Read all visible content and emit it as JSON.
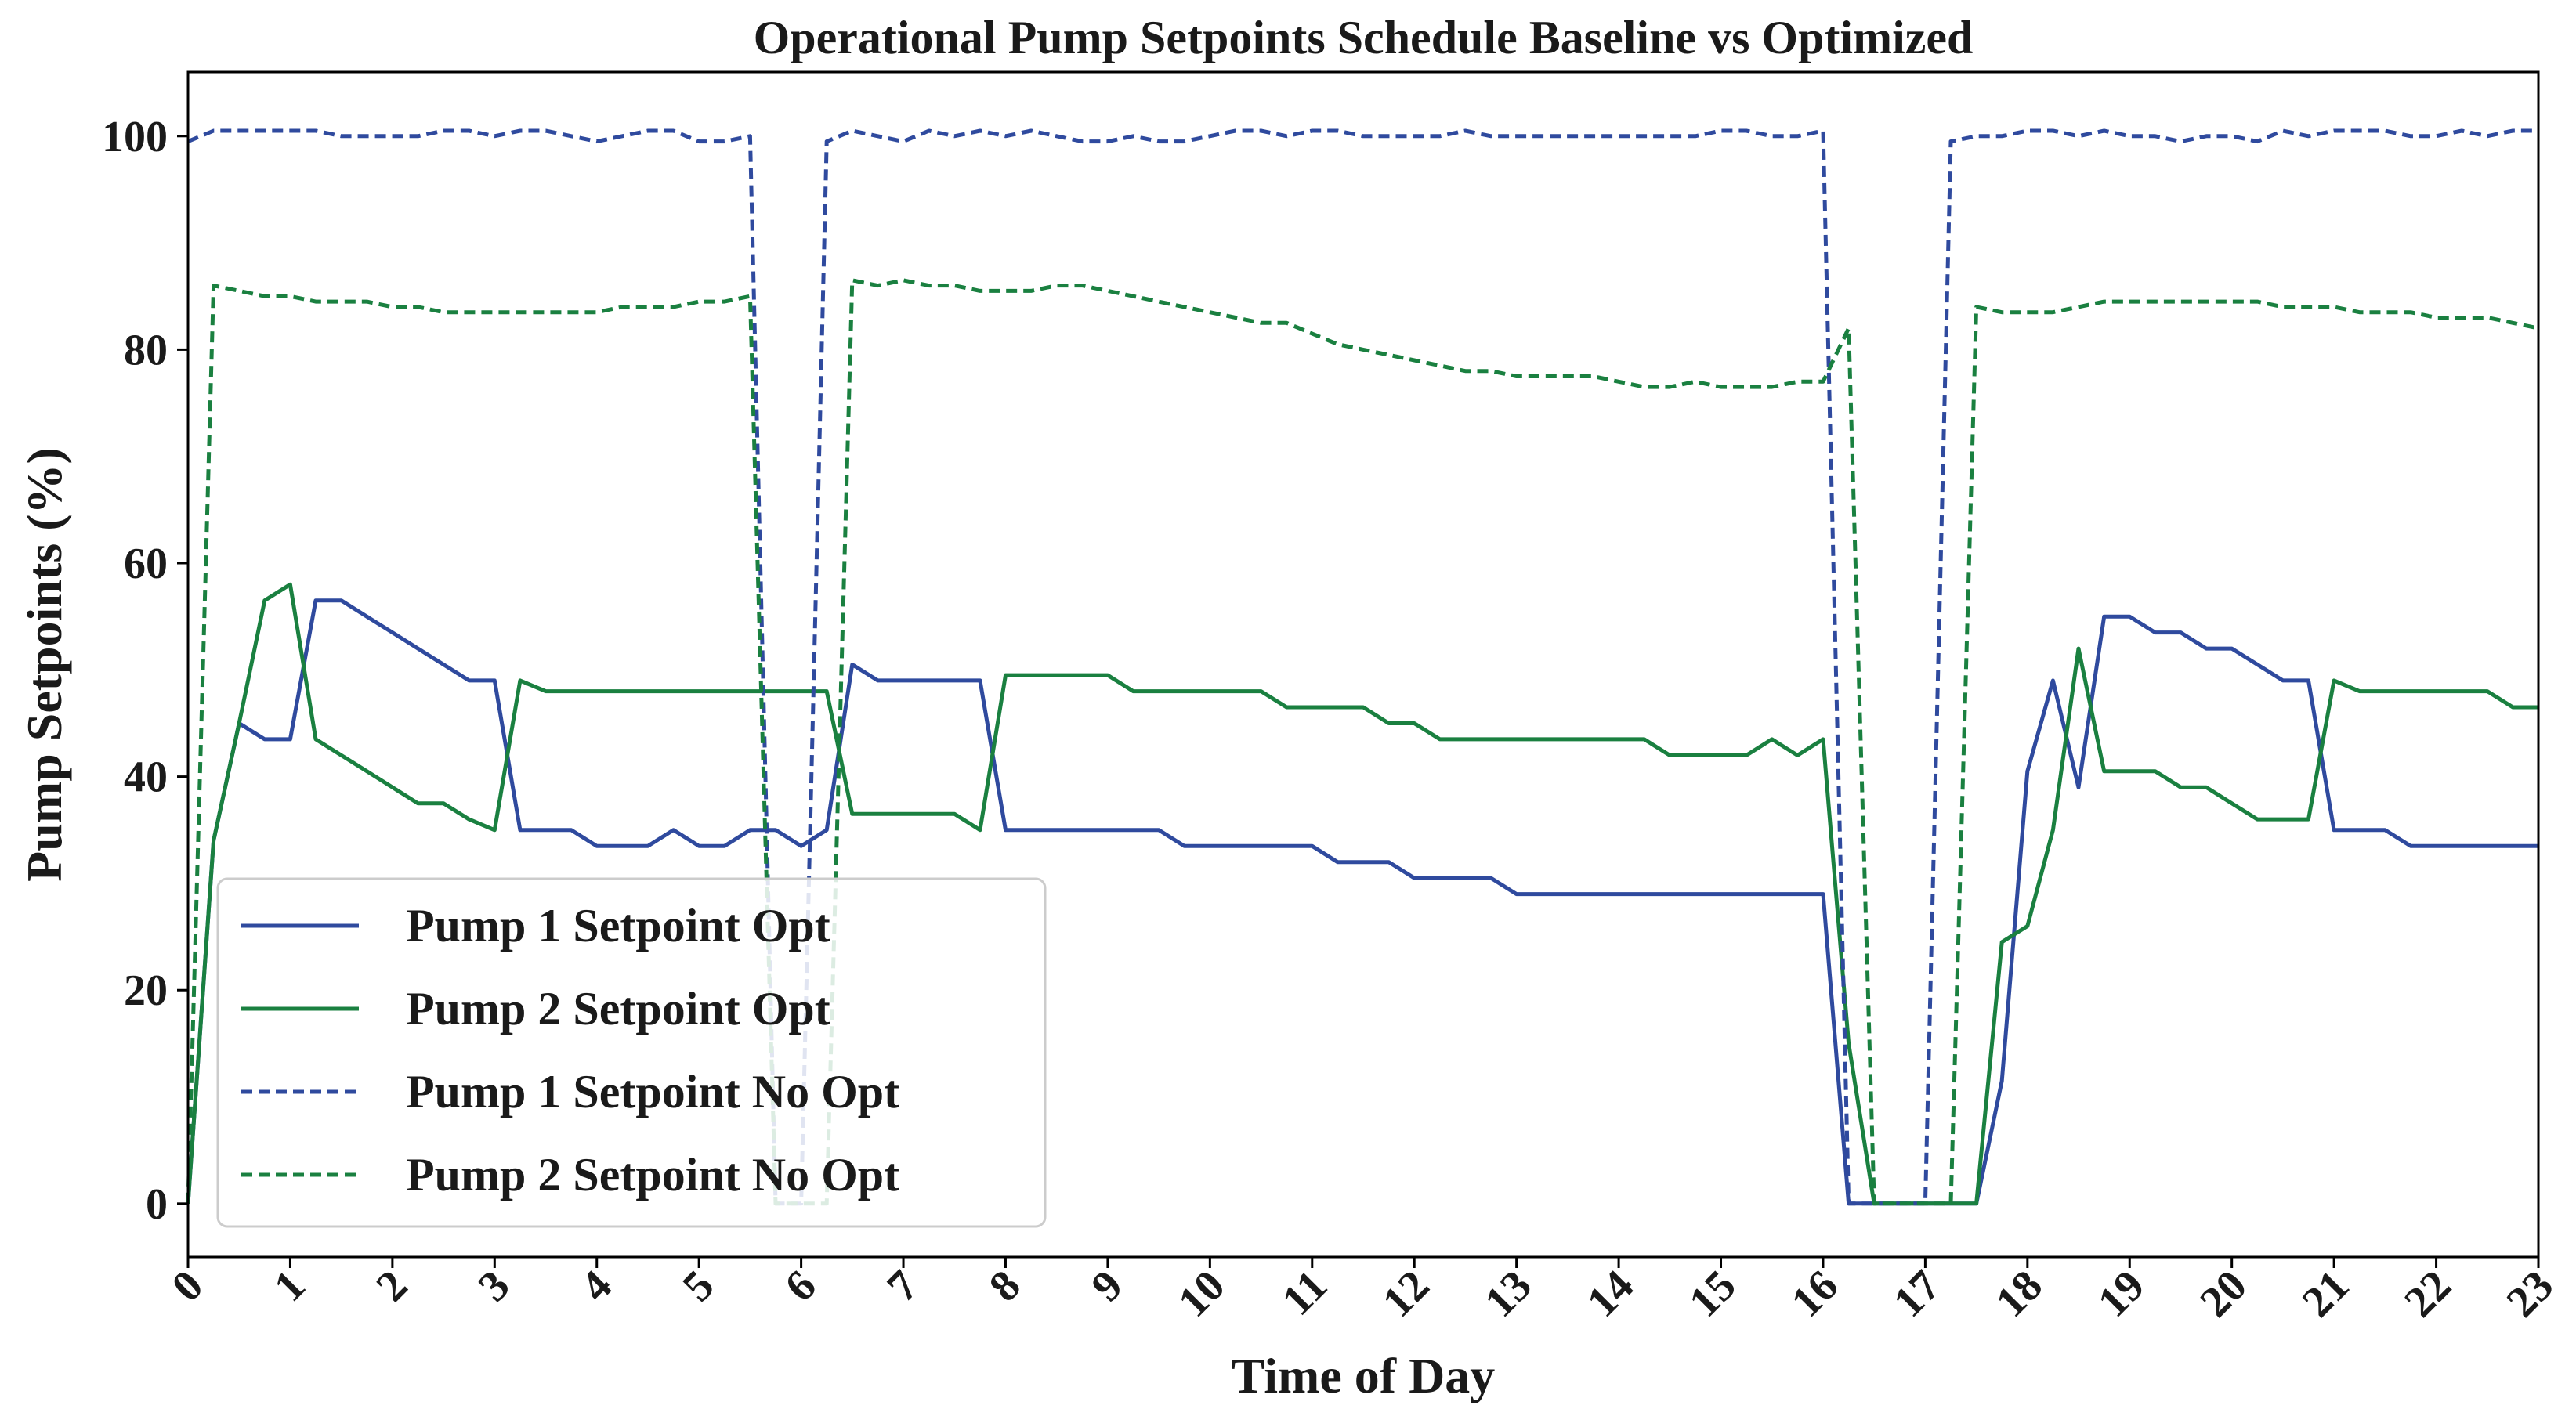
{
  "chart_data": {
    "type": "line",
    "title": "Operational Pump Setpoints Schedule Baseline vs Optimized",
    "xlabel": "Time of Day",
    "ylabel": "Pump Setpoints (%)",
    "xlim": [
      0,
      23
    ],
    "ylim": [
      -5,
      106
    ],
    "xticks": [
      0,
      1,
      2,
      3,
      4,
      5,
      6,
      7,
      8,
      9,
      10,
      11,
      12,
      13,
      14,
      15,
      16,
      17,
      18,
      19,
      20,
      21,
      22,
      23
    ],
    "yticks": [
      0,
      20,
      40,
      60,
      80,
      100
    ],
    "grid": false,
    "legend_position": "lower-left",
    "series": [
      {
        "name": "Pump 1 Setpoint Opt",
        "color": "#2f4a9e",
        "style": "solid",
        "x": [
          0,
          0.25,
          0.5,
          0.75,
          1,
          1.25,
          1.5,
          1.75,
          2,
          2.25,
          2.5,
          2.75,
          3,
          3.25,
          3.5,
          3.75,
          4,
          4.25,
          4.5,
          4.75,
          5,
          5.25,
          5.5,
          5.75,
          6,
          6.25,
          6.5,
          6.75,
          7,
          7.25,
          7.5,
          7.75,
          8,
          8.25,
          8.5,
          8.75,
          9,
          9.25,
          9.5,
          9.75,
          10,
          10.25,
          10.5,
          10.75,
          11,
          11.25,
          11.5,
          11.75,
          12,
          12.25,
          12.5,
          12.75,
          13,
          13.25,
          13.5,
          13.75,
          14,
          14.25,
          14.5,
          14.75,
          15,
          15.25,
          15.5,
          15.75,
          16,
          16.25,
          16.5,
          16.75,
          17,
          17.25,
          17.5,
          17.75,
          18,
          18.25,
          18.5,
          18.75,
          19,
          19.25,
          19.5,
          19.75,
          20,
          20.25,
          20.5,
          20.75,
          21,
          21.25,
          21.5,
          21.75,
          22,
          22.25,
          22.5,
          22.75,
          23
        ],
        "y": [
          0,
          34,
          45,
          43.5,
          43.5,
          56.5,
          56.5,
          55,
          53.5,
          52,
          50.5,
          49,
          49,
          35,
          35,
          35,
          33.5,
          33.5,
          33.5,
          35,
          33.5,
          33.5,
          35,
          35,
          33.5,
          35,
          50.5,
          49,
          49,
          49,
          49,
          49,
          35,
          35,
          35,
          35,
          35,
          35,
          35,
          33.5,
          33.5,
          33.5,
          33.5,
          33.5,
          33.5,
          32,
          32,
          32,
          30.5,
          30.5,
          30.5,
          30.5,
          29,
          29,
          29,
          29,
          29,
          29,
          29,
          29,
          29,
          29,
          29,
          29,
          29,
          0,
          0,
          0,
          0,
          0,
          0,
          11.5,
          40.5,
          49,
          39,
          55,
          55,
          53.5,
          53.5,
          52,
          52,
          50.5,
          49,
          49,
          35,
          35,
          35,
          33.5,
          33.5,
          33.5,
          33.5,
          33.5,
          33.5
        ]
      },
      {
        "name": "Pump 2 Setpoint Opt",
        "color": "#1a8040",
        "style": "solid",
        "x": [
          0,
          0.25,
          0.5,
          0.75,
          1,
          1.25,
          1.5,
          1.75,
          2,
          2.25,
          2.5,
          2.75,
          3,
          3.25,
          3.5,
          3.75,
          4,
          4.25,
          4.5,
          4.75,
          5,
          5.25,
          5.5,
          5.75,
          6,
          6.25,
          6.5,
          6.75,
          7,
          7.25,
          7.5,
          7.75,
          8,
          8.25,
          8.5,
          8.75,
          9,
          9.25,
          9.5,
          9.75,
          10,
          10.25,
          10.5,
          10.75,
          11,
          11.25,
          11.5,
          11.75,
          12,
          12.25,
          12.5,
          12.75,
          13,
          13.25,
          13.5,
          13.75,
          14,
          14.25,
          14.5,
          14.75,
          15,
          15.25,
          15.5,
          15.75,
          16,
          16.25,
          16.5,
          16.75,
          17,
          17.25,
          17.5,
          17.75,
          18,
          18.25,
          18.5,
          18.75,
          19,
          19.25,
          19.5,
          19.75,
          20,
          20.25,
          20.5,
          20.75,
          21,
          21.25,
          21.5,
          21.75,
          22,
          22.25,
          22.5,
          22.75,
          23
        ],
        "y": [
          0,
          34,
          45,
          56.5,
          58,
          43.5,
          42,
          40.5,
          39,
          37.5,
          37.5,
          36,
          35,
          49,
          48,
          48,
          48,
          48,
          48,
          48,
          48,
          48,
          48,
          48,
          48,
          48,
          36.5,
          36.5,
          36.5,
          36.5,
          36.5,
          35,
          49.5,
          49.5,
          49.5,
          49.5,
          49.5,
          48,
          48,
          48,
          48,
          48,
          48,
          46.5,
          46.5,
          46.5,
          46.5,
          45,
          45,
          43.5,
          43.5,
          43.5,
          43.5,
          43.5,
          43.5,
          43.5,
          43.5,
          43.5,
          42,
          42,
          42,
          42,
          43.5,
          42,
          43.5,
          15,
          0,
          0,
          0,
          0,
          0,
          24.5,
          26,
          35,
          52,
          40.5,
          40.5,
          40.5,
          39,
          39,
          37.5,
          36,
          36,
          36,
          49,
          48,
          48,
          48,
          48,
          48,
          48,
          46.5,
          46.5
        ]
      },
      {
        "name": "Pump 1 Setpoint No Opt",
        "color": "#2f4a9e",
        "style": "dashed",
        "x": [
          0,
          0.25,
          0.5,
          0.75,
          1,
          1.25,
          1.5,
          1.75,
          2,
          2.25,
          2.5,
          2.75,
          3,
          3.25,
          3.5,
          3.75,
          4,
          4.25,
          4.5,
          4.75,
          5,
          5.25,
          5.5,
          5.75,
          6,
          6.25,
          6.5,
          6.75,
          7,
          7.25,
          7.5,
          7.75,
          8,
          8.25,
          8.5,
          8.75,
          9,
          9.25,
          9.5,
          9.75,
          10,
          10.25,
          10.5,
          10.75,
          11,
          11.25,
          11.5,
          11.75,
          12,
          12.25,
          12.5,
          12.75,
          13,
          13.25,
          13.5,
          13.75,
          14,
          14.25,
          14.5,
          14.75,
          15,
          15.25,
          15.5,
          15.75,
          16,
          16.25,
          16.5,
          16.75,
          17,
          17.25,
          17.5,
          17.75,
          18,
          18.25,
          18.5,
          18.75,
          19,
          19.25,
          19.5,
          19.75,
          20,
          20.25,
          20.5,
          20.75,
          21,
          21.25,
          21.5,
          21.75,
          22,
          22.25,
          22.5,
          22.75,
          23
        ],
        "y": [
          99.5,
          100.5,
          100.5,
          100.5,
          100.5,
          100.5,
          100,
          100,
          100,
          100,
          100.5,
          100.5,
          100,
          100.5,
          100.5,
          100,
          99.5,
          100,
          100.5,
          100.5,
          99.5,
          99.5,
          100,
          0,
          0,
          99.5,
          100.5,
          100,
          99.5,
          100.5,
          100,
          100.5,
          100,
          100.5,
          100,
          99.5,
          99.5,
          100,
          99.5,
          99.5,
          100,
          100.5,
          100.5,
          100,
          100.5,
          100.5,
          100,
          100,
          100,
          100,
          100.5,
          100,
          100,
          100,
          100,
          100,
          100,
          100,
          100,
          100,
          100.5,
          100.5,
          100,
          100,
          100.5,
          0,
          0,
          0,
          0,
          99.5,
          100,
          100,
          100.5,
          100.5,
          100,
          100.5,
          100,
          100,
          99.5,
          100,
          100,
          99.5,
          100.5,
          100,
          100.5,
          100.5,
          100.5,
          100,
          100,
          100.5,
          100,
          100.5,
          100.5
        ]
      },
      {
        "name": "Pump 2 Setpoint No Opt",
        "color": "#1a8040",
        "style": "dashed",
        "x": [
          0,
          0.25,
          0.5,
          0.75,
          1,
          1.25,
          1.5,
          1.75,
          2,
          2.25,
          2.5,
          2.75,
          3,
          3.25,
          3.5,
          3.75,
          4,
          4.25,
          4.5,
          4.75,
          5,
          5.25,
          5.5,
          5.75,
          6,
          6.25,
          6.5,
          6.75,
          7,
          7.25,
          7.5,
          7.75,
          8,
          8.25,
          8.5,
          8.75,
          9,
          9.25,
          9.5,
          9.75,
          10,
          10.25,
          10.5,
          10.75,
          11,
          11.25,
          11.5,
          11.75,
          12,
          12.25,
          12.5,
          12.75,
          13,
          13.25,
          13.5,
          13.75,
          14,
          14.25,
          14.5,
          14.75,
          15,
          15.25,
          15.5,
          15.75,
          16,
          16.25,
          16.5,
          16.75,
          17,
          17.25,
          17.5,
          17.75,
          18,
          18.25,
          18.5,
          18.75,
          19,
          19.25,
          19.5,
          19.75,
          20,
          20.25,
          20.5,
          20.75,
          21,
          21.25,
          21.5,
          21.75,
          22,
          22.25,
          22.5,
          22.75,
          23
        ],
        "y": [
          0,
          86,
          85.5,
          85,
          85,
          84.5,
          84.5,
          84.5,
          84,
          84,
          83.5,
          83.5,
          83.5,
          83.5,
          83.5,
          83.5,
          83.5,
          84,
          84,
          84,
          84.5,
          84.5,
          85,
          0,
          0,
          0,
          86.5,
          86,
          86.5,
          86,
          86,
          85.5,
          85.5,
          85.5,
          86,
          86,
          85.5,
          85,
          84.5,
          84,
          83.5,
          83,
          82.5,
          82.5,
          81.5,
          80.5,
          80,
          79.5,
          79,
          78.5,
          78,
          78,
          77.5,
          77.5,
          77.5,
          77.5,
          77,
          76.5,
          76.5,
          77,
          76.5,
          76.5,
          76.5,
          77,
          77,
          82,
          0,
          0,
          0,
          0,
          84,
          83.5,
          83.5,
          83.5,
          84,
          84.5,
          84.5,
          84.5,
          84.5,
          84.5,
          84.5,
          84.5,
          84,
          84,
          84,
          83.5,
          83.5,
          83.5,
          83,
          83,
          83,
          82.5,
          82
        ]
      }
    ]
  }
}
